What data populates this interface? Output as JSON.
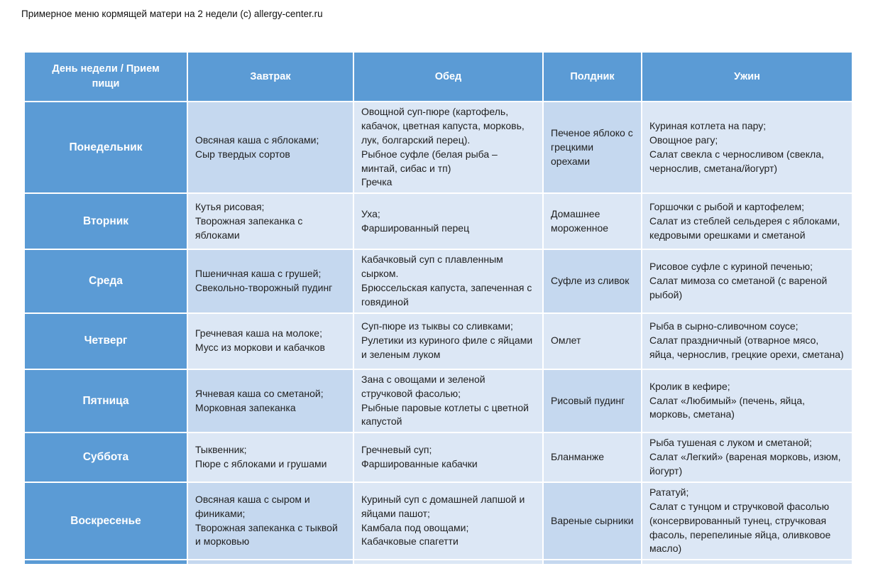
{
  "title": "Примерное меню кормящей матери на 2 недели (с) allergy-center.ru",
  "colors": {
    "accent_blue": "#5b9bd5",
    "cell_dark": "#c5d8ef",
    "cell_light": "#dce7f5",
    "border": "#ffffff",
    "header_text": "#ffffff",
    "body_text": "#1f1f1f"
  },
  "table": {
    "headers": [
      "День недели / Прием пищи",
      "Завтрак",
      "Обед",
      "Полдник",
      "Ужин"
    ],
    "rows": [
      {
        "day": "Понедельник",
        "breakfast": "Овсяная каша с яблоками;\nСыр твердых сортов",
        "lunch": "Овощной суп-пюре (картофель, кабачок, цветная капуста, морковь, лук, болгарский перец).\nРыбное суфле (белая рыба – минтай, сибас и тп)\nГречка",
        "snack": "Печеное яблоко с грецкими орехами",
        "dinner": "Куриная котлета на пару;\nОвощное рагу;\nСалат свекла с черносливом (свекла, чернослив, сметана/йогурт)"
      },
      {
        "day": "Вторник",
        "breakfast": "Кутья рисовая;\nТворожная запеканка с яблоками",
        "lunch": "Уха;\nФаршированный перец",
        "snack": "Домашнее мороженное",
        "dinner": "Горшочки с рыбой и картофелем;\nСалат из стеблей сельдерея с яблоками, кедровыми орешками и сметаной"
      },
      {
        "day": "Среда",
        "breakfast": "Пшеничная каша с грушей;\nСвекольно-творожный пудинг",
        "lunch": "Кабачковый суп с плавленным сырком.\nБрюссельская капуста, запеченная с говядиной",
        "snack": "Суфле из сливок",
        "dinner": "Рисовое суфле с куриной печенью;\nСалат мимоза со сметаной (с вареной рыбой)"
      },
      {
        "day": "Четверг",
        "breakfast": "Гречневая каша на молоке;\nМусс из моркови и кабачков",
        "lunch": "Суп-пюре из тыквы со сливками;\nРулетики из куриного филе с яйцами и зеленым луком",
        "snack": "Омлет",
        "dinner": "Рыба в сырно-сливочном соусе;\nСалат праздничный (отварное мясо, яйца, чернослив, грецкие орехи, сметана)"
      },
      {
        "day": "Пятница",
        "breakfast": "Ячневая каша со сметаной;\nМорковная запеканка",
        "lunch": "Зана с овощами и зеленой стручковой фасолью;\nРыбные паровые котлеты с цветной капустой",
        "snack": "Рисовый пудинг",
        "dinner": "Кролик в кефире;\nСалат «Любимый» (печень, яйца, морковь, сметана)"
      },
      {
        "day": "Суббота",
        "breakfast": "Тыквенник;\nПюре с яблоками и грушами",
        "lunch": "Гречневый суп;\nФаршированные кабачки",
        "snack": "Бланманже",
        "dinner": "Рыба тушеная с луком и сметаной;\nСалат «Легкий» (вареная морковь, изюм, йогурт)"
      },
      {
        "day": "Воскресенье",
        "breakfast": "Овсяная каша с сыром и финиками;\nТворожная запеканка с тыквой и морковью",
        "lunch": "Куриный суп с домашней лапшой и яйцами пашот;\nКамбала под овощами;\nКабачковые спагетти",
        "snack": "Вареные сырники",
        "dinner": "Рататуй;\nСалат с тунцом и стручковой фасолью (консервированный тунец, стручковая фасоль, перепелиные яйца, оливковое масло)"
      }
    ]
  }
}
